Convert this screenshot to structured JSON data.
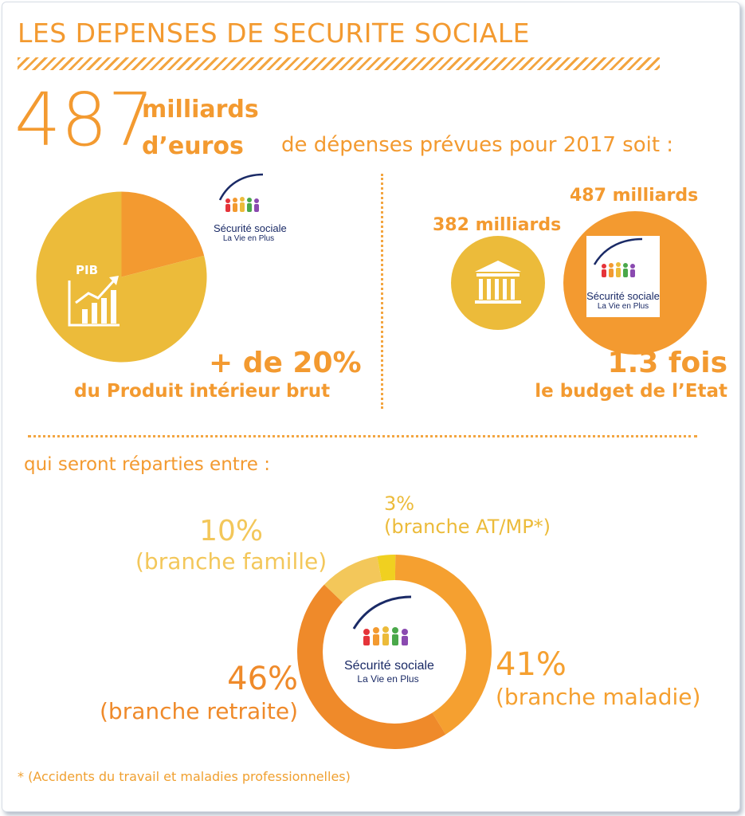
{
  "title": "LES DEPENSES DE SECURITE SOCIALE",
  "headline": {
    "amount": "487",
    "unit_line1": "milliards",
    "unit_line2": "d’euros",
    "intro": "de dépenses prévues pour 2017 soit :"
  },
  "logo": {
    "name": "Sécurité sociale",
    "tagline": "La Vie en Plus"
  },
  "pib": {
    "icon_label": "PIB",
    "headline": "+ de 20%",
    "caption": "du Produit intérieur brut"
  },
  "budget": {
    "state_amount": "382 milliards",
    "ss_amount": "487 milliards",
    "headline": "1.3 fois",
    "caption": "le budget de l’Etat"
  },
  "split_intro": "qui seront réparties entre :",
  "footnote": "* (Accidents du travail et maladies professionnelles)",
  "colors": {
    "orange": "#f39a30",
    "dark_orange": "#ef8a2a",
    "gold": "#ecbb3a",
    "light_gold": "#f3c75a",
    "navy": "#1a2a66"
  },
  "chart_data": [
    {
      "type": "pie",
      "title": "",
      "slices": [
        {
          "label": "",
          "value": 21,
          "color": "#f39a30"
        },
        {
          "label": "PIB",
          "value": 79,
          "color": "#ecbb3a"
        }
      ]
    },
    {
      "type": "pie",
      "title": "",
      "donut": true,
      "slices": [
        {
          "label": "(branche maladie)",
          "pct_label": "41%",
          "value": 41,
          "color": "#f5a030"
        },
        {
          "label": "(branche retraite)",
          "pct_label": "46%",
          "value": 46,
          "color": "#ef8a2a"
        },
        {
          "label": "(branche famille)",
          "pct_label": "10%",
          "value": 10,
          "color": "#f3c75a"
        },
        {
          "label": "(branche AT/MP*)",
          "pct_label": "3%",
          "value": 3,
          "color": "#f0d020"
        }
      ]
    },
    {
      "type": "bar",
      "title": "",
      "categories": [
        "Etat",
        "Sécurité sociale"
      ],
      "values": [
        382,
        487
      ],
      "unit": "milliards"
    }
  ]
}
